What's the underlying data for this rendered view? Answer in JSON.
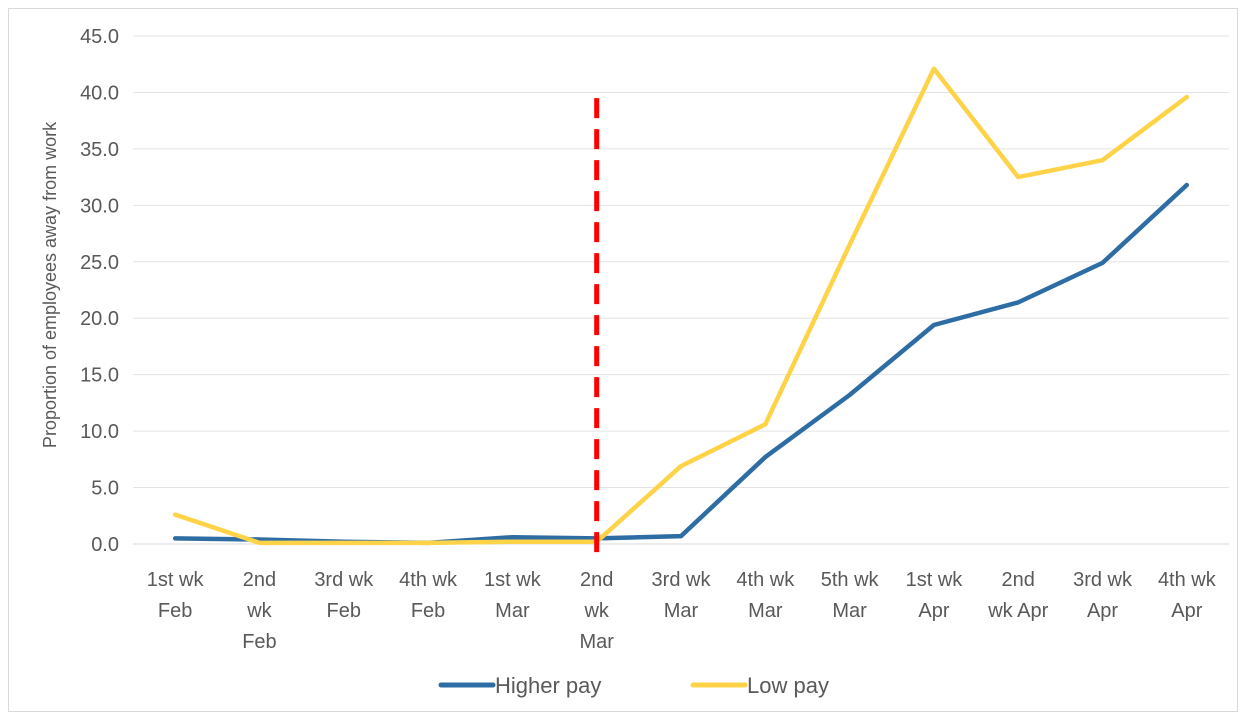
{
  "chart_data": {
    "type": "line",
    "title": "",
    "xlabel": "",
    "ylabel": "Proportion of employees away from work",
    "ylim": [
      0,
      45
    ],
    "yticks": [
      "0.0",
      "5.0",
      "10.0",
      "15.0",
      "20.0",
      "25.0",
      "30.0",
      "35.0",
      "40.0",
      "45.0"
    ],
    "categories": [
      [
        "1st wk",
        "Feb"
      ],
      [
        "2nd",
        "wk",
        "Feb"
      ],
      [
        "3rd wk",
        "Feb"
      ],
      [
        "4th wk",
        "Feb"
      ],
      [
        "1st wk",
        "Mar"
      ],
      [
        "2nd",
        "wk",
        "Mar"
      ],
      [
        "3rd wk",
        "Mar"
      ],
      [
        "4th wk",
        "Mar"
      ],
      [
        "5th wk",
        "Mar"
      ],
      [
        "1st wk",
        "Apr"
      ],
      [
        "2nd",
        "wk Apr"
      ],
      [
        "3rd wk",
        "Apr"
      ],
      [
        "4th wk",
        "Apr"
      ]
    ],
    "series": [
      {
        "name": "Higher pay",
        "color": "#2e6da4",
        "values": [
          0.5,
          0.4,
          0.2,
          0.1,
          0.6,
          0.5,
          0.7,
          7.7,
          13.2,
          19.4,
          21.4,
          24.9,
          31.8
        ]
      },
      {
        "name": "Low pay",
        "color": "#ffd347",
        "values": [
          2.6,
          0.1,
          0.1,
          0.1,
          0.2,
          0.2,
          6.9,
          10.6,
          26.5,
          42.1,
          32.5,
          34.0,
          39.6
        ]
      }
    ],
    "marker_line": {
      "category_index": 5,
      "color": "#ff0000",
      "style": "dashed",
      "top_value": 39.5
    },
    "grid": true,
    "legend_position": "bottom"
  }
}
